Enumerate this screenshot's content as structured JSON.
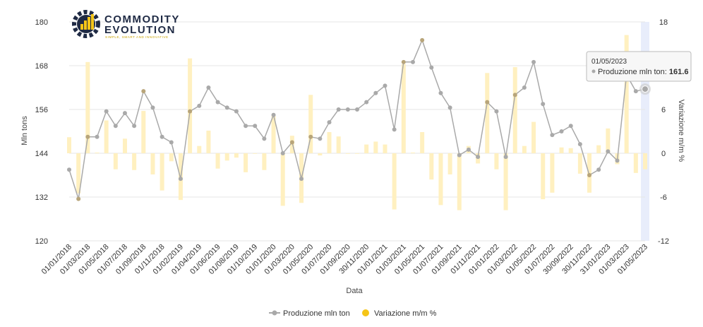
{
  "logo": {
    "line1": "COMMODITY",
    "line2": "EVOLUTION",
    "tagline": "SIMPLE, SMART AND INNOVATIVE"
  },
  "colors": {
    "line": "#a9a9a9",
    "marker_default": "#a9a9a9",
    "marker_highlight": "#b8a57a",
    "bar": "#fff0c0",
    "legend_bar": "#f5c518",
    "grid": "#e6e6e6",
    "hover_band": "#e8edfb"
  },
  "tooltip": {
    "date": "01/05/2023",
    "series_label": "Produzione mln ton:",
    "value": "161.6"
  },
  "chart_data": {
    "type": "line",
    "xlabel": "Data",
    "ylabel": "Mln tons",
    "y2label": "Variazione m/m %",
    "ylim": [
      120,
      180
    ],
    "y_ticks": [
      "120",
      "132",
      "144",
      "156",
      "168",
      "180"
    ],
    "y2lim": [
      -12,
      18
    ],
    "y2_ticks": [
      "-12",
      "-6",
      "0",
      "6",
      "12",
      "18"
    ],
    "grid": true,
    "legend_position": "bottom",
    "x_tick_labels": [
      "01/01/2018",
      "01/03/2018",
      "01/05/2018",
      "01/07/2018",
      "01/09/2018",
      "01/11/2018",
      "01/02/2019",
      "01/04/2019",
      "01/06/2019",
      "01/08/2019",
      "01/10/2019",
      "01/01/2020",
      "01/03/2020",
      "01/05/2020",
      "01/07/2020",
      "01/09/2020",
      "30/11/2020",
      "01/01/2021",
      "01/03/2021",
      "01/05/2021",
      "01/07/2021",
      "01/09/2021",
      "01/11/2021",
      "01/01/2022",
      "01/03/2022",
      "01/05/2022",
      "01/07/2022",
      "30/09/2022",
      "30/11/2022",
      "31/01/2023",
      "01/03/2023",
      "01/05/2023"
    ],
    "x_tick_positions": [
      0,
      2,
      4,
      6,
      8,
      10,
      12,
      14,
      16,
      18,
      20,
      22,
      24,
      26,
      28,
      30,
      32,
      34,
      36,
      38,
      40,
      42,
      44,
      46,
      48,
      50,
      52,
      54,
      56,
      58,
      60,
      62
    ],
    "series": [
      {
        "name": "Produzione mln ton",
        "type": "line",
        "axis": "left",
        "values": [
          139.5,
          131.5,
          148.5,
          148.5,
          155.5,
          151.5,
          155,
          151.5,
          161,
          156.5,
          148.5,
          147,
          137,
          155.5,
          157,
          162,
          158,
          156.5,
          155.5,
          151.5,
          151.5,
          148,
          154.5,
          144,
          147,
          137,
          148.5,
          148,
          152.5,
          156,
          156,
          156,
          158,
          160.5,
          162.5,
          150.5,
          169,
          169,
          175,
          167.5,
          160.5,
          156.5,
          143.5,
          145,
          143,
          158,
          155.5,
          143,
          160,
          162,
          169,
          157.5,
          149,
          150,
          151.5,
          146.5,
          138,
          139.5,
          144.5,
          142,
          165.5,
          161,
          161.6
        ],
        "highlighted_indices": [
          1,
          2,
          8,
          13,
          24,
          26,
          36,
          38,
          45,
          48,
          56,
          60,
          62
        ]
      },
      {
        "name": "Variazione m/m %",
        "type": "bar",
        "axis": "right",
        "values": [
          2.2,
          -5.5,
          12.5,
          0.1,
          4.5,
          -2.2,
          2,
          -2.3,
          5.8,
          -2.9,
          -5.1,
          -1.1,
          -6.4,
          13,
          1,
          3.1,
          -2.1,
          -1,
          -0.6,
          -2.6,
          0,
          -2.3,
          5.1,
          -7.2,
          2.4,
          -6.8,
          8,
          -0.3,
          2.9,
          2.3,
          0,
          0,
          1.2,
          1.6,
          1.2,
          -7.7,
          12.2,
          0.1,
          2.9,
          -3.6,
          -7.1,
          -2.9,
          -7.8,
          1,
          -1.4,
          11,
          -2.2,
          -7.8,
          11.8,
          1,
          4.3,
          -6.3,
          -5.4,
          0.8,
          0.7,
          -2.8,
          -5.4,
          1.1,
          3.4,
          -1.5,
          16.2,
          -2.7,
          -2.2
        ]
      }
    ]
  }
}
